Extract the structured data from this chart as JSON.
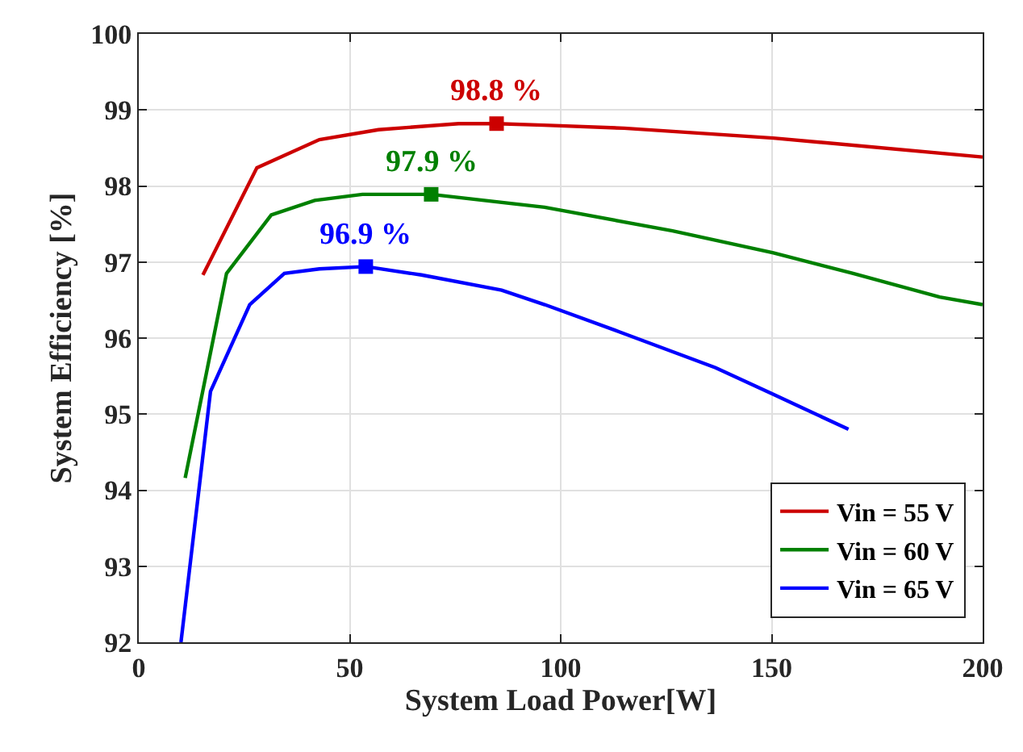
{
  "chart_data": {
    "type": "line",
    "xlabel": "System Load Power[W]",
    "ylabel": "System Efficiency [%]",
    "xlim": [
      0,
      200
    ],
    "ylim": [
      92,
      100
    ],
    "xticks": [
      0,
      50,
      100,
      150,
      200
    ],
    "yticks": [
      92,
      93,
      94,
      95,
      96,
      97,
      98,
      99,
      100
    ],
    "grid": true,
    "legend": "bottom right",
    "marker": "none",
    "line_style": "solid",
    "series": [
      {
        "name": "Vin = 55 V",
        "color": "#cc0000",
        "x": [
          15.2,
          28,
          42.8,
          56.8,
          75.8,
          84.8,
          96,
          115,
          150.4,
          200
        ],
        "values": [
          96.83,
          98.24,
          98.61,
          98.74,
          98.82,
          98.82,
          98.8,
          98.76,
          98.63,
          98.38
        ]
      },
      {
        "name": "Vin = 60 V",
        "color": "#008000",
        "x": [
          11,
          20.8,
          31.4,
          41.7,
          53,
          69.3,
          96.2,
          126.5,
          150.4,
          169.3,
          189.8,
          200
        ],
        "values": [
          94.16,
          96.85,
          97.62,
          97.81,
          97.89,
          97.89,
          97.72,
          97.41,
          97.12,
          96.85,
          96.54,
          96.44
        ]
      },
      {
        "name": "Vin = 65 V",
        "color": "#0000ff",
        "x": [
          10,
          17,
          26.3,
          34.5,
          42.8,
          53.8,
          67,
          86,
          96.2,
          114,
          136.7,
          150.4,
          168.2
        ],
        "values": [
          92.0,
          95.3,
          96.44,
          96.85,
          96.91,
          96.94,
          96.83,
          96.63,
          96.44,
          96.08,
          95.61,
          95.26,
          94.8
        ]
      },
      {
        "type": "scatter",
        "marker": "square",
        "color": "#cc0000",
        "x": [
          84.8
        ],
        "values": [
          98.82
        ]
      },
      {
        "type": "scatter",
        "marker": "square",
        "color": "#008000",
        "x": [
          69.3
        ],
        "values": [
          97.89
        ]
      },
      {
        "type": "scatter",
        "marker": "square",
        "color": "#0000ff",
        "x": [
          53.8
        ],
        "values": [
          96.94
        ]
      }
    ],
    "annotations": [
      {
        "text": "98.8 %",
        "x": 84.8,
        "y": 98.82
      },
      {
        "text": "97.9 %",
        "x": 69.3,
        "y": 97.89
      },
      {
        "text": "96.9 %",
        "x": 53.8,
        "y": 96.94
      }
    ]
  }
}
